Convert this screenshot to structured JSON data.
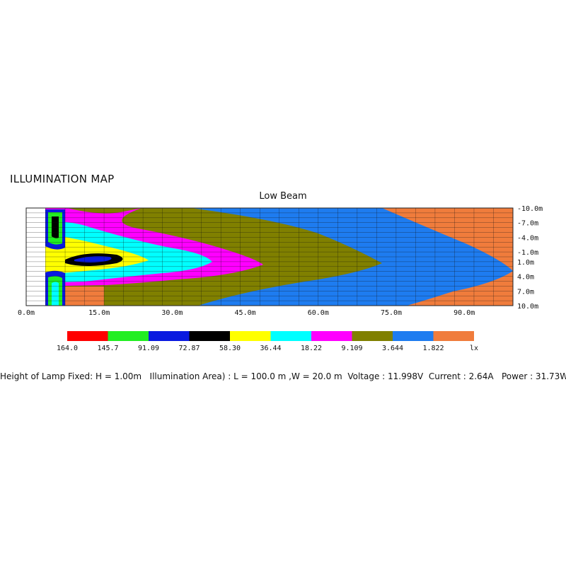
{
  "heading": "ILLUMINATION MAP",
  "chart_data": {
    "type": "heatmap",
    "title": "Low Beam",
    "x_ticks": [
      "0.0m",
      "15.0m",
      "30.0m",
      "45.0m",
      "60.0m",
      "75.0m",
      "90.0m"
    ],
    "x_tick_values": [
      0,
      15,
      30,
      45,
      60,
      75,
      90
    ],
    "y_ticks": [
      "-10.0m",
      "-7.0m",
      "-4.0m",
      "-1.0m",
      "1.0m",
      "4.0m",
      "7.0m",
      "10.0m"
    ],
    "y_tick_values": [
      -10,
      -7,
      -4,
      -1,
      1,
      4,
      7,
      10
    ],
    "xlim": [
      0,
      100
    ],
    "ylim": [
      -10,
      10
    ],
    "unit": "lx",
    "legend": [
      {
        "label": "164.0",
        "color": "#ff0000"
      },
      {
        "label": "145.7",
        "color": "#22ee22"
      },
      {
        "label": "91.09",
        "color": "#0a1ae0"
      },
      {
        "label": "72.87",
        "color": "#000000"
      },
      {
        "label": "58.30",
        "color": "#ffff00"
      },
      {
        "label": "36.44",
        "color": "#00ffff"
      },
      {
        "label": "18.22",
        "color": "#ff00ff"
      },
      {
        "label": "9.109",
        "color": "#808000"
      },
      {
        "label": "3.644",
        "color": "#1e7cf0"
      },
      {
        "label": "1.822",
        "color": "#f07c3c"
      }
    ],
    "legend_unit_label": "lx"
  },
  "footer": "Height of Lamp Fixed: H = 1.00m   Illumination Area) : L = 100.0 m ,W = 20.0 m  Voltage : 11.998V  Current : 2.64A   Power : 31.73W"
}
